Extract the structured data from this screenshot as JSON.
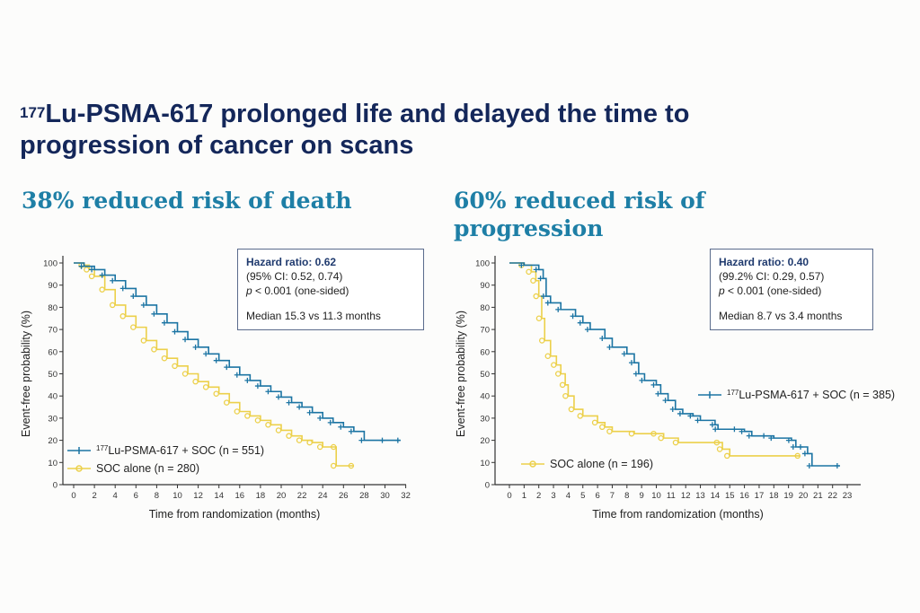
{
  "slide": {
    "title_sup": "177",
    "title_rest": "Lu-PSMA-617 prolonged life and delayed the time to progression of cancer on scans",
    "left_subtitle": "38% reduced risk of death",
    "right_subtitle": "60% reduced risk of progression"
  },
  "colors": {
    "lu_series": "#1b74a3",
    "soc_series": "#ecd04a",
    "title": "#14275a",
    "subtitle": "#1e7fa6"
  },
  "chart_data": [
    {
      "type": "line",
      "subtype": "kaplan-meier",
      "title": "38% reduced risk of death",
      "xlabel": "Time from randomization (months)",
      "ylabel": "Event-free probability (%)",
      "xlim": [
        0,
        32
      ],
      "ylim": [
        0,
        100
      ],
      "xticks": [
        0,
        2,
        4,
        6,
        8,
        10,
        12,
        14,
        16,
        18,
        20,
        22,
        24,
        26,
        28,
        30,
        32
      ],
      "yticks": [
        0,
        10,
        20,
        30,
        40,
        50,
        60,
        70,
        80,
        90,
        100
      ],
      "legend": "bottom-left",
      "stats": {
        "hr_label": "Hazard ratio: 0.62",
        "ci": "(95% CI: 0.52, 0.74)",
        "p_italic": "p",
        "p_rest": " < 0.001 (one-sided)",
        "median": "Median 15.3 vs 11.3 months"
      },
      "series": [
        {
          "name_sup": "177",
          "name_rest": "Lu-PSMA-617 + SOC (n = 551)",
          "marker": "plus",
          "points": [
            [
              0,
              100
            ],
            [
              1,
              98.5
            ],
            [
              2,
              97
            ],
            [
              3,
              94.5
            ],
            [
              4,
              92
            ],
            [
              5,
              88.5
            ],
            [
              6,
              85
            ],
            [
              7,
              81
            ],
            [
              8,
              77
            ],
            [
              9,
              73
            ],
            [
              10,
              69
            ],
            [
              11,
              65.5
            ],
            [
              12,
              62
            ],
            [
              13,
              59
            ],
            [
              14,
              56
            ],
            [
              15,
              53
            ],
            [
              16,
              49.5
            ],
            [
              17,
              47
            ],
            [
              18,
              44.5
            ],
            [
              19,
              42
            ],
            [
              20,
              39.5
            ],
            [
              21,
              37
            ],
            [
              22,
              35
            ],
            [
              23,
              32.5
            ],
            [
              24,
              30
            ],
            [
              25,
              28
            ],
            [
              26,
              26
            ],
            [
              27,
              24
            ],
            [
              28,
              20
            ],
            [
              30,
              20
            ],
            [
              31.5,
              20
            ]
          ]
        },
        {
          "name": "SOC alone (n = 280)",
          "marker": "circle",
          "points": [
            [
              0,
              100
            ],
            [
              1,
              99
            ],
            [
              1.5,
              97
            ],
            [
              2,
              94
            ],
            [
              3,
              88
            ],
            [
              4,
              81
            ],
            [
              5,
              76
            ],
            [
              6,
              71
            ],
            [
              7,
              65
            ],
            [
              8,
              61
            ],
            [
              9,
              57
            ],
            [
              10,
              53.5
            ],
            [
              11,
              50
            ],
            [
              12,
              46.5
            ],
            [
              13,
              44
            ],
            [
              14,
              41
            ],
            [
              15,
              37
            ],
            [
              16,
              33
            ],
            [
              17,
              31
            ],
            [
              18,
              29
            ],
            [
              19,
              27
            ],
            [
              20,
              24.5
            ],
            [
              21,
              22
            ],
            [
              22,
              20
            ],
            [
              23,
              19
            ],
            [
              24,
              17
            ],
            [
              25.3,
              17
            ],
            [
              25.3,
              8.5
            ],
            [
              27,
              8.5
            ]
          ]
        }
      ]
    },
    {
      "type": "line",
      "subtype": "kaplan-meier",
      "title": "60% reduced risk of progression",
      "xlabel": "Time from randomization (months)",
      "ylabel": "Event-free probability (%)",
      "xlim": [
        0,
        23
      ],
      "ylim": [
        0,
        100
      ],
      "xticks": [
        0,
        1,
        2,
        3,
        4,
        5,
        6,
        7,
        8,
        9,
        10,
        11,
        12,
        13,
        14,
        15,
        16,
        17,
        18,
        19,
        20,
        21,
        22,
        23
      ],
      "yticks": [
        0,
        10,
        20,
        30,
        40,
        50,
        60,
        70,
        80,
        90,
        100
      ],
      "legend": "right / bottom-left",
      "stats": {
        "hr_label": "Hazard ratio: 0.40",
        "ci": "(99.2% CI: 0.29, 0.57)",
        "p_italic": "p",
        "p_rest": " < 0.001 (one-sided)",
        "median": "Median 8.7 vs 3.4 months"
      },
      "series": [
        {
          "name_sup": "177",
          "name_rest": "Lu-PSMA-617 + SOC (n = 385)",
          "marker": "plus",
          "points": [
            [
              0,
              100
            ],
            [
              1,
              99
            ],
            [
              2,
              97
            ],
            [
              2.3,
              93
            ],
            [
              2.5,
              85
            ],
            [
              2.8,
              82
            ],
            [
              3.5,
              79
            ],
            [
              4.5,
              76
            ],
            [
              5,
              73
            ],
            [
              5.5,
              70
            ],
            [
              6.5,
              66
            ],
            [
              7,
              62
            ],
            [
              8,
              59
            ],
            [
              8.5,
              55
            ],
            [
              8.8,
              50
            ],
            [
              9.2,
              47
            ],
            [
              10,
              45
            ],
            [
              10.3,
              41
            ],
            [
              10.8,
              38
            ],
            [
              11.3,
              34
            ],
            [
              11.8,
              32
            ],
            [
              12.5,
              31
            ],
            [
              13,
              29
            ],
            [
              14,
              27
            ],
            [
              14.2,
              25
            ],
            [
              15.5,
              25
            ],
            [
              16,
              24
            ],
            [
              16.5,
              22
            ],
            [
              17.5,
              22
            ],
            [
              18,
              21
            ],
            [
              19.2,
              20
            ],
            [
              19.5,
              17
            ],
            [
              20,
              17
            ],
            [
              20.3,
              14
            ],
            [
              20.6,
              8.5
            ],
            [
              22.5,
              8.5
            ]
          ]
        },
        {
          "name": "SOC alone (n = 196)",
          "marker": "circle",
          "points": [
            [
              0,
              100
            ],
            [
              1,
              99
            ],
            [
              1.5,
              96
            ],
            [
              1.8,
              92
            ],
            [
              2,
              85
            ],
            [
              2.2,
              75
            ],
            [
              2.4,
              65
            ],
            [
              2.8,
              58
            ],
            [
              3.2,
              54
            ],
            [
              3.5,
              50
            ],
            [
              3.8,
              45
            ],
            [
              4,
              40
            ],
            [
              4.4,
              34
            ],
            [
              5,
              31
            ],
            [
              6,
              28
            ],
            [
              6.5,
              26
            ],
            [
              7,
              24
            ],
            [
              8.5,
              23
            ],
            [
              10,
              23
            ],
            [
              10.5,
              21
            ],
            [
              11.5,
              19
            ],
            [
              14.3,
              19
            ],
            [
              14.5,
              16
            ],
            [
              15,
              13
            ],
            [
              19.8,
              13
            ]
          ]
        }
      ]
    }
  ]
}
